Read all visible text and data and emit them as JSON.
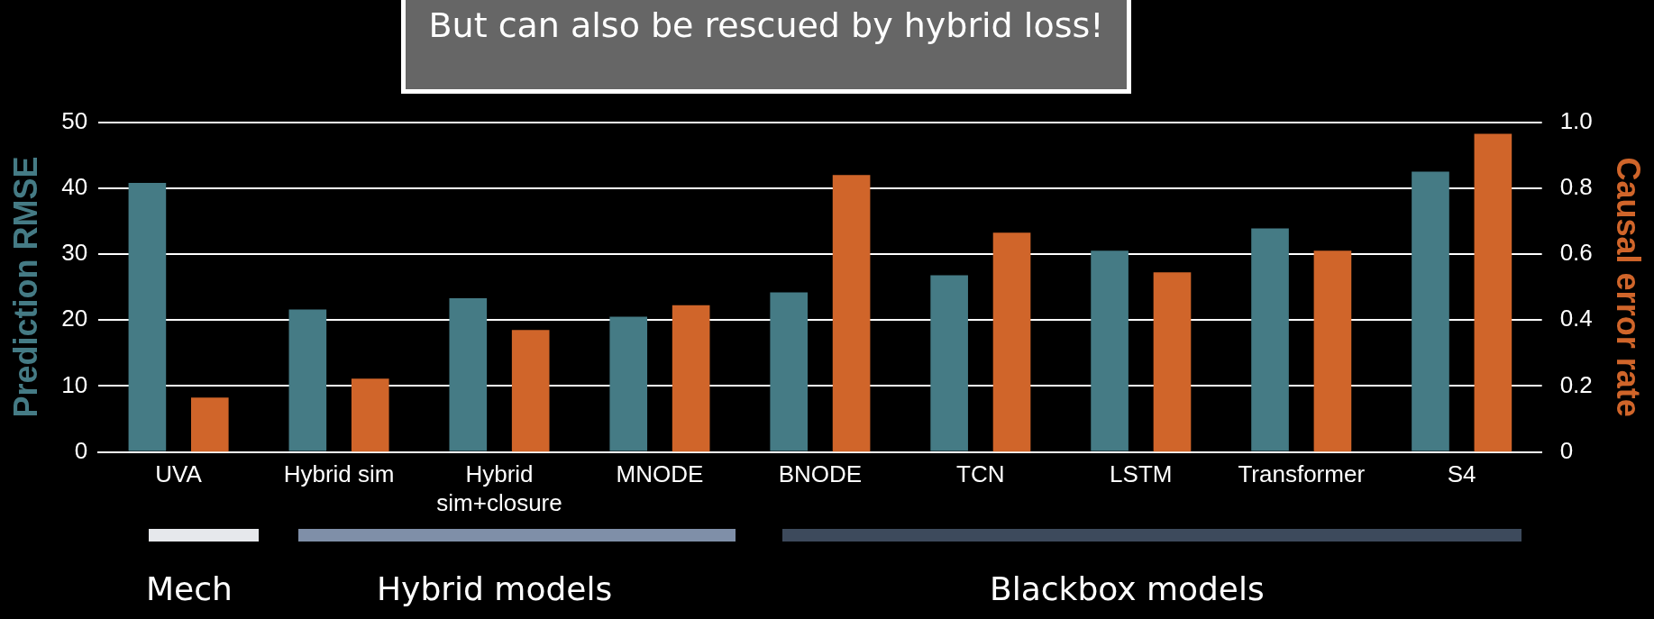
{
  "chart_data": {
    "type": "bar",
    "title": "But can also be rescued by hybrid loss!",
    "categories": [
      "UVA",
      "Hybrid sim",
      "Hybrid\nsim+closure",
      "MNODE",
      "BNODE",
      "TCN",
      "LSTM",
      "Transformer",
      "S4"
    ],
    "series": [
      {
        "color": "#457b85",
        "values": [
          40.8,
          21.6,
          23.3,
          20.5,
          24.2,
          26.8,
          30.5,
          33.9,
          42.5
        ]
      },
      {
        "color": "#d0652a",
        "axis": "y2",
        "values": [
          0.165,
          0.222,
          0.37,
          0.445,
          0.84,
          0.665,
          0.545,
          0.61,
          0.965
        ]
      }
    ],
    "ylabel": "Prediction RMSE",
    "y2label": "Causal error rate",
    "ylim": [
      0,
      50
    ],
    "yticks": [
      0,
      10,
      20,
      30,
      40,
      50
    ],
    "y2lim": [
      0,
      1
    ],
    "y2ticks": [
      0,
      0.2,
      0.4,
      0.6,
      0.8,
      {
        "value": 1,
        "label": "1.0"
      }
    ],
    "grid": "y",
    "legend": false,
    "annotations": [
      "Mech",
      "Hybrid models",
      "Blackbox models"
    ]
  }
}
